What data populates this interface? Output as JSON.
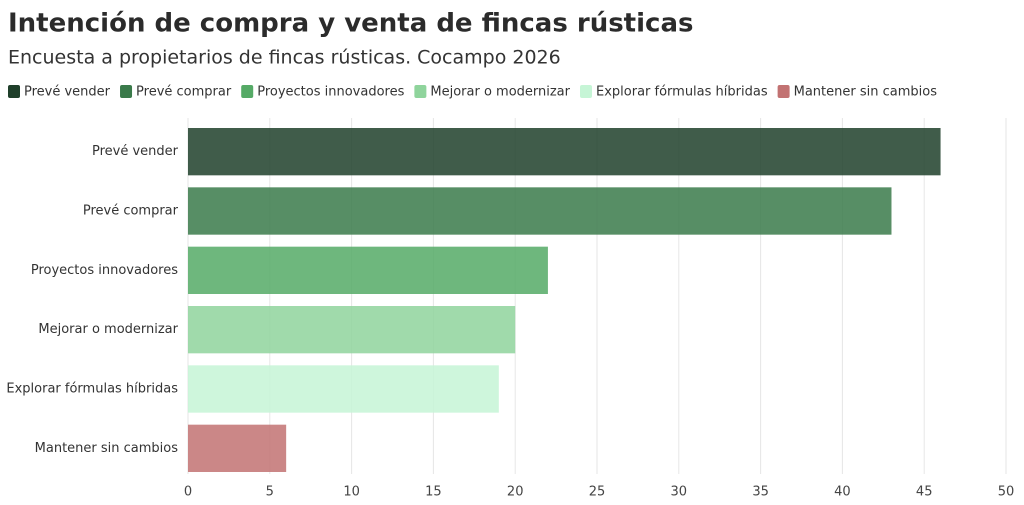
{
  "chart_data": {
    "type": "bar",
    "orientation": "horizontal",
    "title": "Intención de compra y venta de fincas rústicas",
    "subtitle": "Encuesta a propietarios de fincas rústicas. Cocampo 2026",
    "categories": [
      "Prevé vender",
      "Prevé comprar",
      "Proyectos innovadores",
      "Mejorar o modernizar",
      "Explorar fórmulas híbridas",
      "Mantener sin cambios"
    ],
    "values": [
      46,
      43,
      22,
      20,
      19,
      6
    ],
    "colors": [
      "#1f3f2a",
      "#3a7a4a",
      "#55aa66",
      "#8fd49c",
      "#c6f5d6",
      "#c27272"
    ],
    "xlim": [
      0,
      50
    ],
    "xticks": [
      0,
      5,
      10,
      15,
      20,
      25,
      30,
      35,
      40,
      45,
      50
    ],
    "grid": true,
    "legend": "top"
  }
}
